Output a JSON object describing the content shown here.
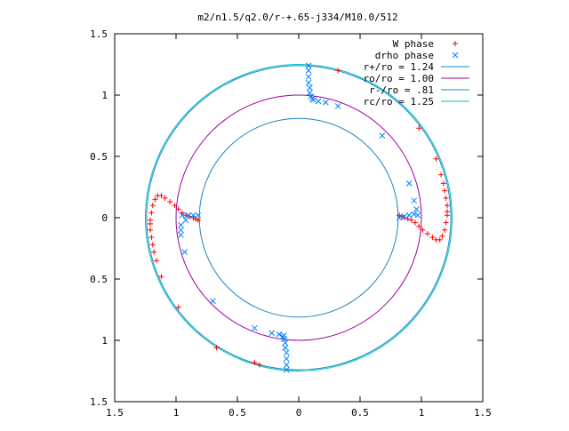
{
  "chart_data": {
    "type": "scatter",
    "title": "m2/n1.5/q2.0/r-+.65-j334/M10.0/512",
    "xlabel": "",
    "ylabel": "",
    "xlim": [
      -1.5,
      1.5
    ],
    "ylim": [
      -1.5,
      1.5
    ],
    "x_ticks": [
      -1.5,
      -1,
      -0.5,
      0,
      0.5,
      1,
      1.5
    ],
    "y_ticks": [
      -1.5,
      -1,
      -0.5,
      0,
      0.5,
      1,
      1.5
    ],
    "x_tick_labels": [
      "1.5",
      "1",
      "0.5",
      "0",
      "0.5",
      "1",
      "1.5"
    ],
    "y_tick_labels": [
      "1.5",
      "1",
      "0.5",
      "0",
      "0.5",
      "1",
      "1.5"
    ],
    "grid": false,
    "legend_position": "top-right",
    "legend": [
      {
        "label": "W phase",
        "marker": "plus",
        "color": "#ff0000"
      },
      {
        "label": "drho phase",
        "marker": "cross",
        "color": "#0080ff"
      },
      {
        "label": "r+/ro = 1.24",
        "marker": "line",
        "color": "#1a86c8"
      },
      {
        "label": "ro/ro = 1.00",
        "marker": "line",
        "color": "#a000a0"
      },
      {
        "label": "r-/ro = .81",
        "marker": "line",
        "color": "#1a86c8"
      },
      {
        "label": "rc/ro = 1.25",
        "marker": "line",
        "color": "#00c0c0"
      }
    ],
    "circles": [
      {
        "name": "r+/ro = 1.24",
        "radius": 1.24,
        "color": "#1a86c8"
      },
      {
        "name": "ro/ro = 1.00",
        "radius": 1.0,
        "color": "#a000a0"
      },
      {
        "name": "r-/ro = .81",
        "radius": 0.81,
        "color": "#1a86c8"
      },
      {
        "name": "rc/ro = 1.25",
        "radius": 1.25,
        "color": "#00c0c0"
      }
    ],
    "series": [
      {
        "name": "W phase",
        "color": "#ff0000",
        "marker": "plus",
        "points": [
          [
            0.32,
            1.2
          ],
          [
            0.98,
            0.73
          ],
          [
            1.12,
            0.48
          ],
          [
            1.16,
            0.35
          ],
          [
            1.18,
            0.28
          ],
          [
            1.19,
            0.22
          ],
          [
            1.2,
            0.16
          ],
          [
            1.21,
            0.1
          ],
          [
            1.21,
            0.05
          ],
          [
            1.21,
            0.02
          ],
          [
            1.2,
            -0.04
          ],
          [
            1.19,
            -0.1
          ],
          [
            1.17,
            -0.15
          ],
          [
            1.15,
            -0.18
          ],
          [
            1.12,
            -0.18
          ],
          [
            1.09,
            -0.16
          ],
          [
            1.05,
            -0.13
          ],
          [
            1.01,
            -0.1
          ],
          [
            0.98,
            -0.07
          ],
          [
            0.95,
            -0.04
          ],
          [
            0.92,
            -0.02
          ],
          [
            0.89,
            -0.01
          ],
          [
            0.86,
            0.0
          ],
          [
            0.84,
            0.01
          ],
          [
            0.82,
            0.02
          ],
          [
            -0.32,
            -1.2
          ],
          [
            -0.98,
            -0.73
          ],
          [
            -1.12,
            -0.48
          ],
          [
            -1.16,
            -0.35
          ],
          [
            -1.18,
            -0.28
          ],
          [
            -1.19,
            -0.22
          ],
          [
            -1.2,
            -0.16
          ],
          [
            -1.21,
            -0.1
          ],
          [
            -1.21,
            -0.05
          ],
          [
            -1.21,
            -0.02
          ],
          [
            -1.2,
            0.04
          ],
          [
            -1.19,
            0.1
          ],
          [
            -1.17,
            0.15
          ],
          [
            -1.15,
            0.18
          ],
          [
            -1.12,
            0.18
          ],
          [
            -1.09,
            0.16
          ],
          [
            -1.05,
            0.13
          ],
          [
            -1.01,
            0.1
          ],
          [
            -0.98,
            0.07
          ],
          [
            -0.95,
            0.04
          ],
          [
            -0.92,
            0.02
          ],
          [
            -0.89,
            0.01
          ],
          [
            -0.86,
            0.0
          ],
          [
            -0.84,
            -0.01
          ],
          [
            -0.82,
            -0.02
          ],
          [
            -0.67,
            -1.06
          ],
          [
            -0.36,
            -1.18
          ]
        ]
      },
      {
        "name": "drho phase",
        "color": "#0080ff",
        "marker": "cross",
        "points": [
          [
            0.12,
            0.96
          ],
          [
            0.16,
            0.95
          ],
          [
            0.22,
            0.94
          ],
          [
            0.32,
            0.91
          ],
          [
            0.68,
            0.67
          ],
          [
            0.9,
            0.28
          ],
          [
            0.94,
            0.14
          ],
          [
            0.96,
            0.07
          ],
          [
            0.97,
            0.02
          ],
          [
            0.08,
            1.24
          ],
          [
            0.08,
            1.2
          ],
          [
            0.08,
            1.15
          ],
          [
            0.08,
            1.1
          ],
          [
            0.09,
            1.06
          ],
          [
            0.09,
            1.02
          ],
          [
            0.1,
            0.99
          ],
          [
            0.11,
            0.97
          ],
          [
            -0.12,
            -0.96
          ],
          [
            -0.16,
            -0.95
          ],
          [
            -0.22,
            -0.94
          ],
          [
            -0.36,
            -0.9
          ],
          [
            -0.92,
            -0.02
          ],
          [
            -0.1,
            -1.24
          ],
          [
            -0.1,
            -1.2
          ],
          [
            -0.1,
            -1.15
          ],
          [
            -0.1,
            -1.1
          ],
          [
            -0.11,
            -1.06
          ],
          [
            -0.11,
            -1.02
          ],
          [
            -0.12,
            -0.99
          ],
          [
            -0.13,
            -0.97
          ],
          [
            0.82,
            0.0
          ],
          [
            0.86,
            0.01
          ],
          [
            0.9,
            0.02
          ],
          [
            0.94,
            0.03
          ],
          [
            -0.82,
            0.02
          ],
          [
            -0.86,
            0.02
          ],
          [
            -0.9,
            0.02
          ],
          [
            -0.95,
            0.02
          ],
          [
            -0.96,
            -0.06
          ],
          [
            -0.96,
            -0.1
          ],
          [
            -0.96,
            -0.14
          ],
          [
            -0.93,
            -0.28
          ],
          [
            -0.7,
            -0.68
          ]
        ]
      }
    ]
  }
}
